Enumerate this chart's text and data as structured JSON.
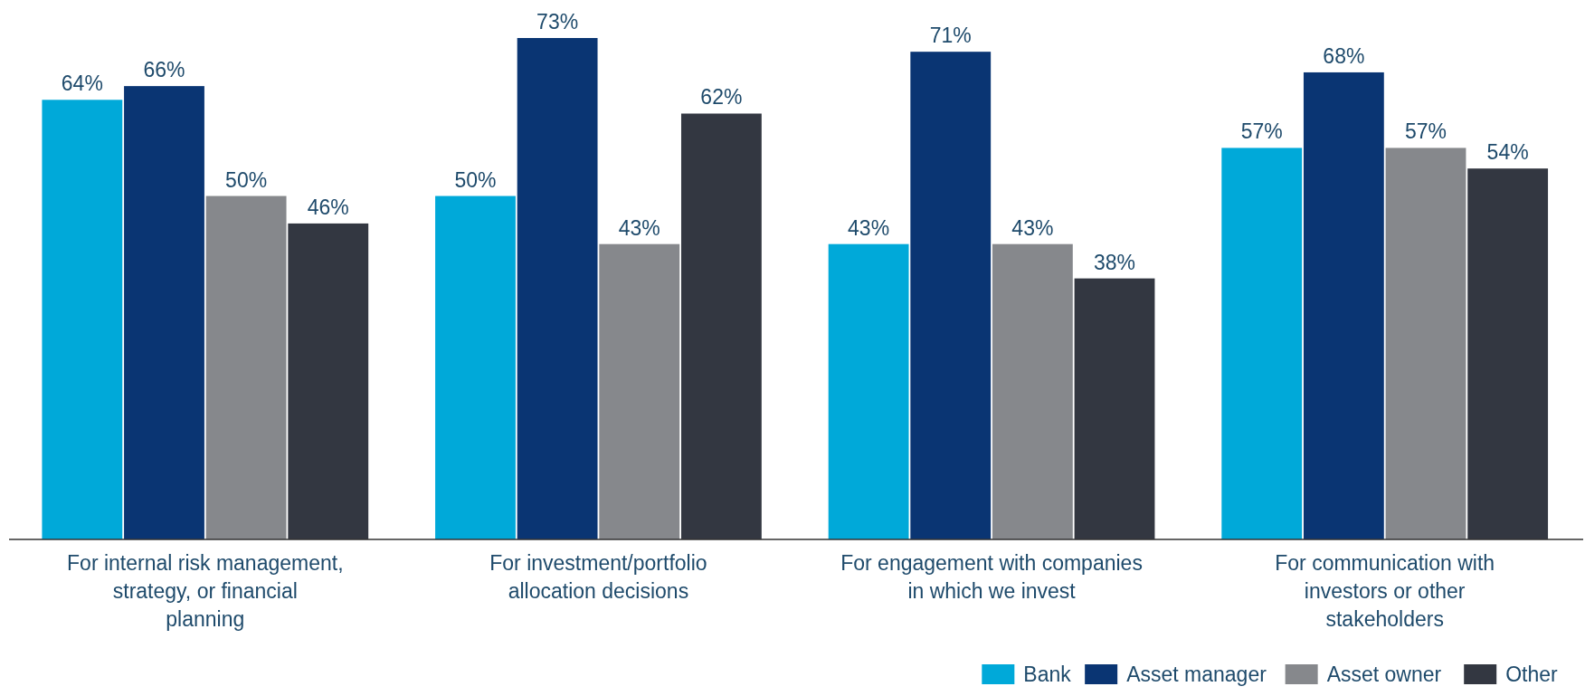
{
  "chart_data": {
    "type": "bar",
    "categories": [
      "For internal risk management, strategy, or financial planning",
      "For investment/portfolio allocation decisions",
      "For engagement with companies in which we invest",
      "For communication with investors or other stakeholders"
    ],
    "series": [
      {
        "name": "Bank",
        "color": "#00a9d9",
        "values": [
          64,
          50,
          43,
          57
        ],
        "value_labels": [
          "64%",
          "50%",
          "43%",
          "57%"
        ]
      },
      {
        "name": "Asset manager",
        "color": "#0a3573",
        "values": [
          66,
          73,
          71,
          68
        ],
        "value_labels": [
          "66%",
          "73%",
          "71%",
          "68%"
        ]
      },
      {
        "name": "Asset owner",
        "color": "#86888c",
        "values": [
          50,
          43,
          43,
          57
        ],
        "value_labels": [
          "50%",
          "43%",
          "43%",
          "57%"
        ]
      },
      {
        "name": "Other",
        "color": "#333741",
        "values": [
          46,
          62,
          38,
          54
        ],
        "value_labels": [
          "46%",
          "62%",
          "38%",
          "54%"
        ]
      }
    ],
    "legend": "bottom right"
  }
}
